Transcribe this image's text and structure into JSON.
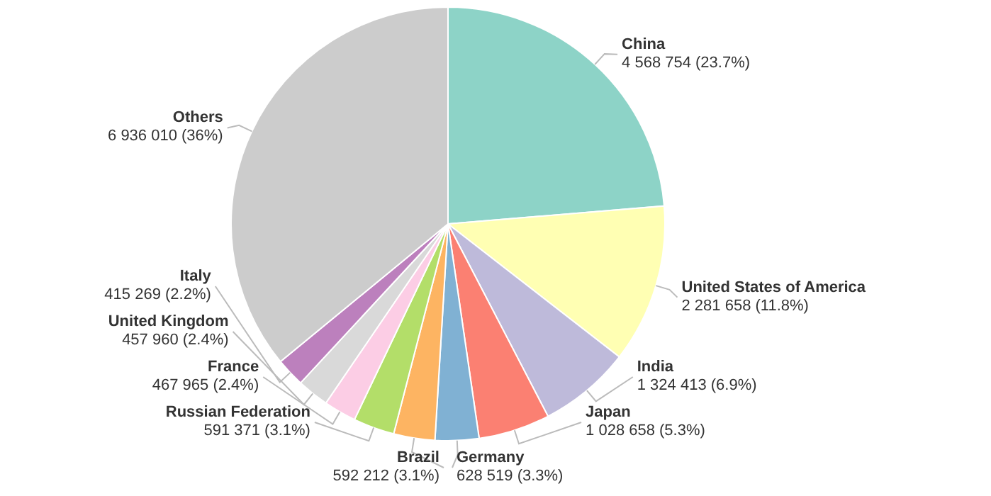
{
  "chart_data": {
    "type": "pie",
    "categories": [
      "China",
      "United States of America",
      "India",
      "Japan",
      "Germany",
      "Brazil",
      "Russian Federation",
      "France",
      "United Kingdom",
      "Italy",
      "Others"
    ],
    "values": [
      4568754,
      2281658,
      1324413,
      1028658,
      628519,
      592212,
      591371,
      467965,
      457960,
      415269,
      6936010
    ],
    "colors": [
      "#8dd3c7",
      "#ffffb3",
      "#bebada",
      "#fb8072",
      "#80b1d3",
      "#fdb462",
      "#b3de69",
      "#fccde5",
      "#d9d9d9",
      "#bc80bd",
      "#cccccc"
    ],
    "value_labels": [
      "4 568 754 (23.7%)",
      "2 281 658 (11.8%)",
      "1 324 413 (6.9%)",
      "1 028 658 (5.3%)",
      "628 519 (3.3%)",
      "592 212 (3.1%)",
      "591 371 (3.1%)",
      "467 965 (2.4%)",
      "457 960 (2.4%)",
      "415 269 (2.2%)",
      "6 936 010 (36%)"
    ]
  }
}
